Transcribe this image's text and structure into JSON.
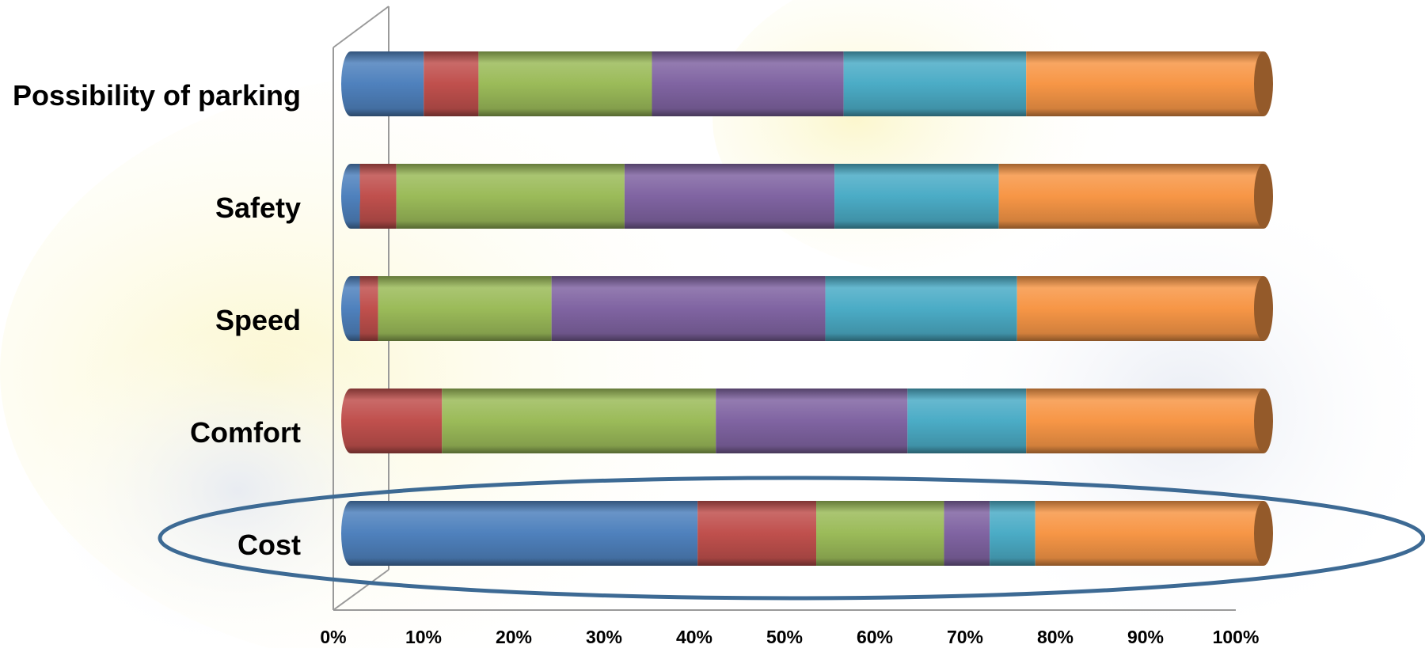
{
  "chart_data": {
    "type": "bar",
    "orientation": "horizontal",
    "stacked": "100%",
    "title": "",
    "xlabel": "",
    "ylabel": "",
    "xlim": [
      0,
      100
    ],
    "x_ticks": [
      "0%",
      "10%",
      "20%",
      "30%",
      "40%",
      "50%",
      "60%",
      "70%",
      "80%",
      "90%",
      "100%"
    ],
    "categories": [
      "Possibility of parking",
      "Safety",
      "Speed",
      "Comfort",
      "Cost"
    ],
    "series": [
      {
        "color": "#4F81BD",
        "values": [
          8,
          1,
          1,
          0,
          38
        ]
      },
      {
        "color": "#C0504D",
        "values": [
          6,
          4,
          2,
          10,
          13
        ]
      },
      {
        "color": "#9BBB59",
        "values": [
          19,
          25,
          19,
          30,
          14
        ]
      },
      {
        "color": "#8064A2",
        "values": [
          21,
          23,
          30,
          21,
          5
        ]
      },
      {
        "color": "#4BACC6",
        "values": [
          20,
          18,
          21,
          13,
          5
        ]
      },
      {
        "color": "#F79646",
        "values": [
          26,
          29,
          27,
          26,
          25
        ]
      }
    ],
    "highlight": {
      "category": "Cost",
      "shape": "ellipse",
      "color": "#3D6A94"
    },
    "legend": "none",
    "grid": false
  }
}
